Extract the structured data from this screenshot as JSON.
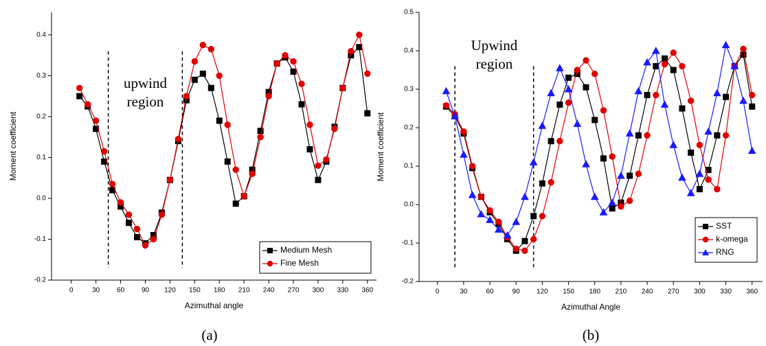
{
  "chart_data": [
    {
      "type": "line",
      "caption": "(a)",
      "x_label": "Azimuthal angle",
      "y_label": "Moment coefficient",
      "annotation": [
        "upwind",
        "region"
      ],
      "annotation_lines": [
        45,
        135
      ],
      "x": [
        10,
        20,
        30,
        40,
        50,
        60,
        70,
        80,
        90,
        100,
        110,
        120,
        130,
        140,
        150,
        160,
        170,
        180,
        190,
        200,
        210,
        220,
        230,
        240,
        250,
        260,
        270,
        280,
        290,
        300,
        310,
        320,
        330,
        340,
        350,
        360
      ],
      "series": [
        {
          "name": "Medium Mesh",
          "color": "#000000",
          "marker": "square",
          "values": [
            0.25,
            0.225,
            0.17,
            0.09,
            0.02,
            -0.02,
            -0.06,
            -0.095,
            -0.11,
            -0.09,
            -0.035,
            0.045,
            0.14,
            0.24,
            0.29,
            0.305,
            0.27,
            0.19,
            0.09,
            -0.013,
            0.005,
            0.07,
            0.165,
            0.26,
            0.33,
            0.345,
            0.31,
            0.23,
            0.12,
            0.045,
            0.09,
            0.175,
            0.27,
            0.35,
            0.37,
            0.208
          ]
        },
        {
          "name": "Fine Mesh",
          "color": "#e00000",
          "marker": "circle",
          "values": [
            0.27,
            0.23,
            0.19,
            0.115,
            0.035,
            -0.01,
            -0.04,
            -0.075,
            -0.115,
            -0.1,
            -0.04,
            0.045,
            0.145,
            0.25,
            0.335,
            0.375,
            0.365,
            0.3,
            0.18,
            0.07,
            0.005,
            0.06,
            0.15,
            0.25,
            0.33,
            0.35,
            0.335,
            0.28,
            0.18,
            0.08,
            0.095,
            0.17,
            0.27,
            0.36,
            0.4,
            0.305
          ]
        }
      ],
      "xlim": [
        -24,
        371
      ],
      "xticks": [
        0,
        30,
        60,
        90,
        120,
        150,
        180,
        210,
        240,
        270,
        300,
        330,
        360
      ],
      "ylim": [
        -0.2,
        0.455
      ],
      "yticks": [
        -0.2,
        -0.1,
        {
          "value": 0,
          "label": "0.0"
        },
        0.1,
        0.2,
        0.3,
        0.4
      ],
      "legend": "lower right"
    },
    {
      "type": "line",
      "caption": "(b)",
      "x_label": "Azimuthal Angle",
      "y_label": "Moment coefficient",
      "annotation": [
        "Upwind",
        "region"
      ],
      "annotation_lines": [
        20,
        110
      ],
      "x": [
        10,
        20,
        30,
        40,
        50,
        60,
        70,
        80,
        90,
        100,
        110,
        120,
        130,
        140,
        150,
        160,
        170,
        180,
        190,
        200,
        210,
        220,
        230,
        240,
        250,
        260,
        270,
        280,
        290,
        300,
        310,
        320,
        330,
        340,
        350,
        360
      ],
      "series": [
        {
          "name": "SST",
          "color": "#000000",
          "marker": "square",
          "values": [
            0.255,
            0.23,
            0.185,
            0.095,
            0.02,
            -0.02,
            -0.05,
            -0.09,
            -0.12,
            -0.095,
            -0.03,
            0.055,
            0.165,
            0.26,
            0.33,
            0.34,
            0.305,
            0.22,
            0.12,
            -0.01,
            0.005,
            0.075,
            0.18,
            0.285,
            0.36,
            0.38,
            0.35,
            0.25,
            0.135,
            0.04,
            0.09,
            0.18,
            0.28,
            0.36,
            0.39,
            0.255
          ]
        },
        {
          "name": "k-omega",
          "color": "#e00000",
          "marker": "circle",
          "values": [
            0.258,
            0.235,
            0.19,
            0.1,
            0.02,
            -0.015,
            -0.045,
            -0.085,
            -0.115,
            -0.12,
            -0.09,
            -0.03,
            0.058,
            0.165,
            0.265,
            0.35,
            0.375,
            0.34,
            0.245,
            0.125,
            -0.005,
            0.01,
            0.08,
            0.18,
            0.285,
            0.365,
            0.395,
            0.36,
            0.27,
            0.155,
            0.065,
            0.04,
            0.18,
            0.36,
            0.405,
            0.285
          ]
        },
        {
          "name": "RNG",
          "color": "#1a1aff",
          "marker": "triangle",
          "values": [
            0.295,
            0.23,
            0.13,
            0.025,
            -0.025,
            -0.04,
            -0.065,
            -0.08,
            -0.045,
            0.02,
            0.11,
            0.205,
            0.29,
            0.355,
            0.3,
            0.21,
            0.105,
            0.02,
            -0.02,
            0.005,
            0.075,
            0.185,
            0.295,
            0.37,
            0.4,
            0.26,
            0.155,
            0.07,
            0.03,
            0.08,
            0.19,
            0.29,
            0.415,
            0.36,
            0.27,
            0.14
          ]
        }
      ],
      "xlim": [
        -21,
        372
      ],
      "xticks": [
        0,
        30,
        60,
        90,
        120,
        150,
        180,
        210,
        240,
        270,
        300,
        330,
        360
      ],
      "ylim": [
        -0.2,
        0.5
      ],
      "yticks": [
        -0.2,
        -0.1,
        {
          "value": 0,
          "label": "0.0"
        },
        0.1,
        0.2,
        0.3,
        0.4,
        0.5
      ],
      "legend": "lower right"
    }
  ]
}
